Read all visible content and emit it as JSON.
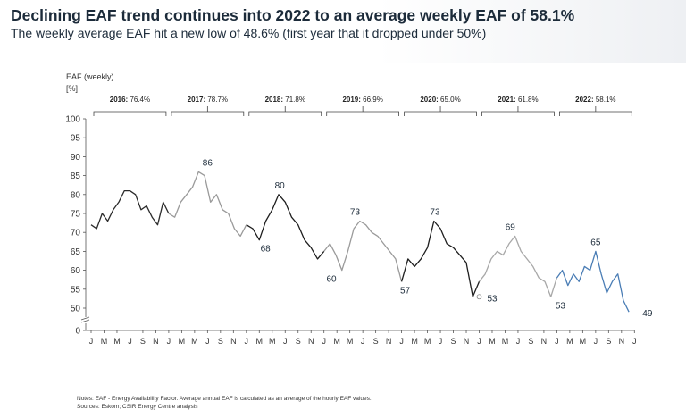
{
  "header": {
    "title": "Declining EAF trend continues into 2022 to an average weekly EAF of 58.1%",
    "subtitle": "The weekly average EAF hit a new low of 48.6% (first year that it dropped under 50%)"
  },
  "notes": {
    "line1": "Notes: EAF - Energy Availability Factor. Average annual EAF is calculated as an average of the hourly EAF values.",
    "line2": "Sources: Eskom; CSIR Energy Centre analysis"
  },
  "chart_data": {
    "type": "line",
    "ylabel": "EAF (weekly)",
    "yunit": "[%]",
    "yticks": [
      0,
      50,
      55,
      60,
      65,
      70,
      75,
      80,
      85,
      90,
      95,
      100
    ],
    "ylim": [
      0,
      100
    ],
    "xticks": [
      "J",
      "M",
      "M",
      "J",
      "S",
      "N",
      "J",
      "M",
      "M",
      "J",
      "S",
      "N",
      "J",
      "M",
      "M",
      "J",
      "S",
      "N",
      "J",
      "M",
      "M",
      "J",
      "S",
      "N",
      "J",
      "M",
      "M",
      "J",
      "S",
      "N",
      "J",
      "M",
      "M",
      "J",
      "S",
      "N",
      "J",
      "M",
      "M",
      "J",
      "S",
      "N",
      "J"
    ],
    "annual": [
      {
        "year": "2016",
        "label": "2016:",
        "avg": "76.4%"
      },
      {
        "year": "2017",
        "label": "2017:",
        "avg": "78.7%"
      },
      {
        "year": "2018",
        "label": "2018:",
        "avg": "71.8%"
      },
      {
        "year": "2019",
        "label": "2019:",
        "avg": "66.9%"
      },
      {
        "year": "2020",
        "label": "2020:",
        "avg": "65.0%"
      },
      {
        "year": "2021",
        "label": "2021:",
        "avg": "61.8%"
      },
      {
        "year": "2022",
        "label": "2022:",
        "avg": "58.1%"
      }
    ],
    "series": [
      {
        "name": "2016",
        "color": "#2b2b2b",
        "values": [
          72,
          71,
          75,
          73,
          76,
          78,
          81,
          81,
          80,
          76,
          77,
          74,
          72,
          78
        ]
      },
      {
        "name": "2017",
        "color": "#9a9a9a",
        "values": [
          75,
          74,
          78,
          80,
          82,
          86,
          85,
          78,
          80,
          76,
          75,
          71,
          69
        ]
      },
      {
        "name": "2018",
        "color": "#1e1e1e",
        "values": [
          72,
          71,
          68,
          73,
          76,
          80,
          78,
          74,
          72,
          68,
          66,
          63
        ]
      },
      {
        "name": "2019",
        "color": "#9a9a9a",
        "values": [
          65,
          67,
          64,
          60,
          65,
          71,
          73,
          72,
          70,
          69,
          67,
          65,
          63
        ]
      },
      {
        "name": "2020",
        "color": "#1e1e1e",
        "values": [
          57,
          63,
          61,
          63,
          66,
          73,
          71,
          67,
          66,
          64,
          62,
          53
        ]
      },
      {
        "name": "2021",
        "color": "#a8a8a8",
        "values": [
          57,
          59,
          63,
          65,
          64,
          67,
          69,
          65,
          63,
          61,
          58,
          57,
          53
        ]
      },
      {
        "name": "2022",
        "color": "#4a7db5",
        "values": [
          58,
          60,
          56,
          59,
          57,
          61,
          60,
          65,
          59,
          54,
          57,
          59,
          52,
          49
        ]
      }
    ],
    "annotations": [
      {
        "text": "86",
        "t": 1.5,
        "v": 86,
        "pos": "above"
      },
      {
        "text": "80",
        "t": 2.43,
        "v": 80,
        "pos": "above"
      },
      {
        "text": "68",
        "t": 2.2,
        "v": 68,
        "pos": "below"
      },
      {
        "text": "73",
        "t": 3.4,
        "v": 73,
        "pos": "above"
      },
      {
        "text": "60",
        "t": 3.05,
        "v": 60,
        "pos": "below"
      },
      {
        "text": "73",
        "t": 4.43,
        "v": 73,
        "pos": "above"
      },
      {
        "text": "57",
        "t": 4.0,
        "v": 57,
        "pos": "below"
      },
      {
        "text": "69",
        "t": 5.4,
        "v": 69,
        "pos": "above"
      },
      {
        "text": "53",
        "t": 5.0,
        "v": 53,
        "pos": "right"
      },
      {
        "text": "53",
        "t": 6.0,
        "v": 53,
        "pos": "below"
      },
      {
        "text": "65",
        "t": 6.5,
        "v": 65,
        "pos": "above"
      },
      {
        "text": "49",
        "t": 7.0,
        "v": 49,
        "pos": "right"
      }
    ]
  }
}
